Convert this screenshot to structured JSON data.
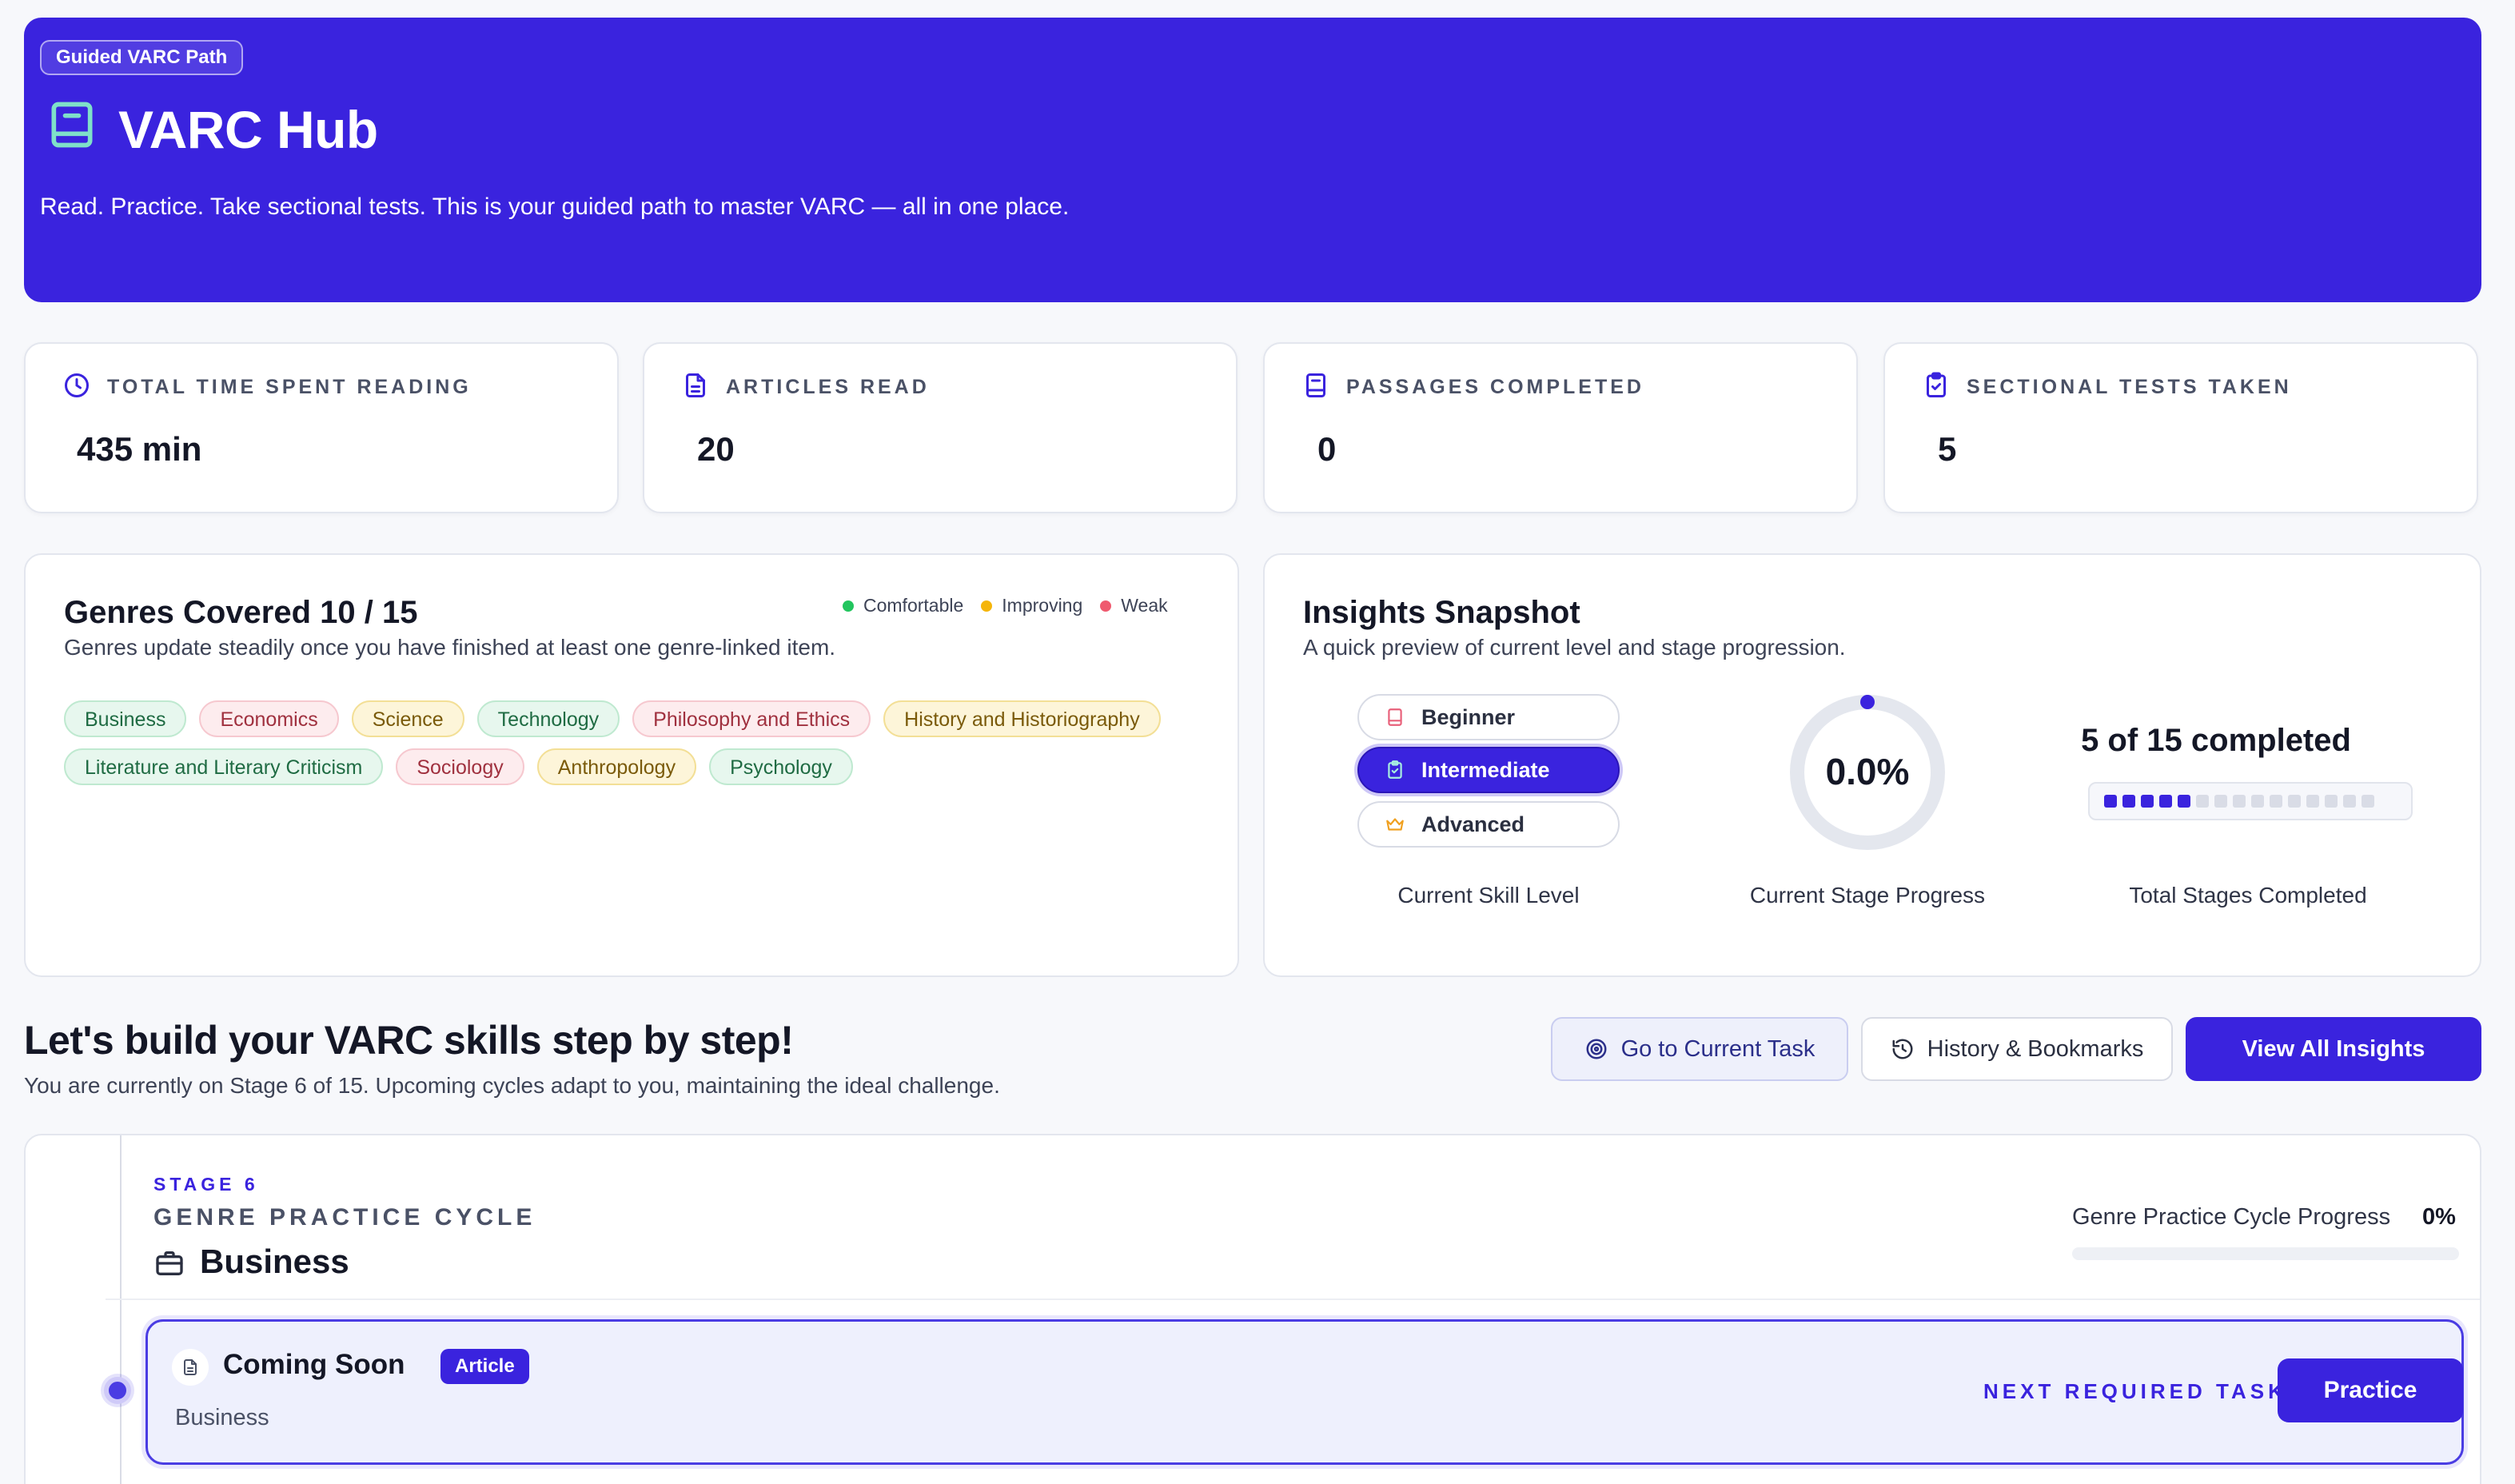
{
  "hero": {
    "badge": "Guided VARC Path",
    "title": "VARC Hub",
    "icon": "book-icon",
    "description": "Read. Practice. Take sectional tests. This is your guided path to master VARC — all in one place."
  },
  "stats": [
    {
      "label": "TOTAL TIME SPENT READING",
      "value": "435 min",
      "icon": "clock-icon"
    },
    {
      "label": "ARTICLES READ",
      "value": "20",
      "icon": "document-icon"
    },
    {
      "label": "PASSAGES COMPLETED",
      "value": "0",
      "icon": "book-icon"
    },
    {
      "label": "SECTIONAL TESTS TAKEN",
      "value": "5",
      "icon": "clipboard-check-icon"
    }
  ],
  "genres": {
    "title": "Genres Covered 10 / 15",
    "subtitle": "Genres update steadily once you have finished at least one genre-linked item.",
    "legend": [
      {
        "label": "Comfortable",
        "color": "#22c55e"
      },
      {
        "label": "Improving",
        "color": "#f5b50a"
      },
      {
        "label": "Weak",
        "color": "#ef5a6f"
      }
    ],
    "chips": [
      {
        "label": "Business",
        "status": "comfortable"
      },
      {
        "label": "Economics",
        "status": "weak"
      },
      {
        "label": "Science",
        "status": "improving"
      },
      {
        "label": "Technology",
        "status": "comfortable"
      },
      {
        "label": "Philosophy and Ethics",
        "status": "weak"
      },
      {
        "label": "History and Historiography",
        "status": "improving"
      },
      {
        "label": "Literature and Literary Criticism",
        "status": "comfortable"
      },
      {
        "label": "Sociology",
        "status": "weak"
      },
      {
        "label": "Anthropology",
        "status": "improving"
      },
      {
        "label": "Psychology",
        "status": "comfortable"
      }
    ]
  },
  "insights": {
    "title": "Insights Snapshot",
    "subtitle": "A quick preview of current level and stage progression.",
    "levels": [
      {
        "label": "Beginner",
        "icon": "book-icon",
        "active": false
      },
      {
        "label": "Intermediate",
        "icon": "clipboard-icon",
        "active": true
      },
      {
        "label": "Advanced",
        "icon": "crown-icon",
        "active": false
      }
    ],
    "skill_caption": "Current Skill Level",
    "stage_progress_value": "0.0%",
    "stage_progress_fraction": 0.0,
    "stage_progress_caption": "Current Stage Progress",
    "stages_completed_text": "5 of 15 completed",
    "stages_completed": 5,
    "stages_total": 15,
    "stages_caption": "Total Stages Completed"
  },
  "section": {
    "title": "Let's build your VARC skills step by step!",
    "subtitle": "You are currently on Stage 6 of 15. Upcoming cycles adapt to you, maintaining the ideal challenge.",
    "buttons": {
      "current_task": "Go to Current Task",
      "history": "History & Bookmarks",
      "insights": "View All Insights"
    }
  },
  "stage": {
    "eyebrow": "STAGE 6",
    "kind": "GENRE PRACTICE CYCLE",
    "genre": "Business",
    "progress_label": "Genre Practice Cycle Progress",
    "progress_value": "0%",
    "progress_fraction": 0.0,
    "task": {
      "title": "Coming Soon",
      "tag": "Article",
      "subtitle": "Business",
      "next_label": "NEXT REQUIRED TASK",
      "action": "Practice"
    }
  },
  "colors": {
    "brand": "#3a23de",
    "background": "#f7f8fb"
  }
}
